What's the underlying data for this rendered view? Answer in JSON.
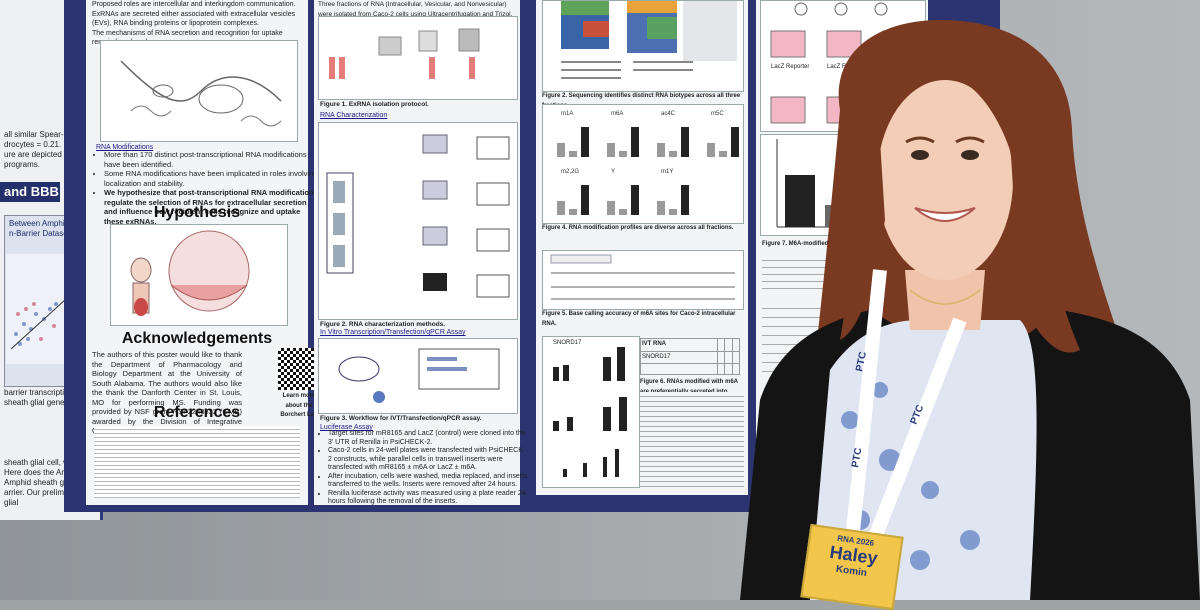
{
  "left_poster": {
    "fragment_top": "all similar Spear-\ndrocytes = 0.21.\nure are depicted\nprograms.",
    "section_bar": "and BBB",
    "panel_title": "Between Amphid\nn-Barrier Dataset",
    "fragment_mid": "barrier transcription\nsheath glial genes",
    "fragment_bottom": "sheath glial cell, we can\nHere does the Amphid\nAmphid sheath glia acts\narrier. Our preliminary glial"
  },
  "poster": {
    "col1": {
      "intro_lines": "Proposed roles are intercellular and interkingdom communication.\nExRNAs are secreted either associated with extracellular vesicles (EVs), RNA binding proteins or lipoprotein complexes.\nThe mechanisms of RNA secretion and recognition for uptake remain largely unknown.",
      "mods_heading": "RNA Modifications",
      "mods_bullets": [
        "More than 170 distinct post-transcriptional RNA modifications have been identified.",
        "Some RNA modifications have been implicated in roles involving localization and stability.",
        "We hypothesize that post-transcriptional RNA modifications regulate the selection of RNAs for extracellular secretion and influence how recipient cells recognize and uptake these exRNAs."
      ],
      "hypothesis_title": "Hypothesis",
      "ack_title": "Acknowledgements",
      "ack_text": "The authors of this poster would like to thank the Department of Pharmacology and Biology Department at the University of South Alabama. The authors would also like the thank the Danforth Center in St. Louis, MO for performing MS. Funding was provided by NSF grant NSF2243532 (GMB) awarded by the Division of Integrative Organismal Systems.",
      "qr_caption": "Learn more about the Borchert Lab",
      "refs_title": "References"
    },
    "col2": {
      "top_text": "Three fractions of RNA (Intracellular, Vesicular, and Nonvesicular) were isolated from Caco-2 cells using Ultracentrifugation and Trizol.",
      "fig1_caption": "Figure 1. ExRNA isolation protocol.",
      "rna_char_heading": "RNA Characterization",
      "fig2_caption": "Figure 2. RNA characterization methods.",
      "ivt_heading": "In Vitro Transcription/Transfection/qPCR Assay",
      "fig3_caption": "Figure 3. Workflow for IVT/Transfection/qPCR assay.",
      "luc_heading": "Luciferase Assay",
      "luc_bullets": [
        "Target sites for mR8165 and LacZ (control) were cloned into the 3' UTR of Renilla in PsiCHECK-2.",
        "Caco-2 cells in 24-well plates were transfected with PsiCHECK-2 constructs, while parallel cells in transwell inserts were transfected with mR8165 ± m6A or LacZ ± m6A.",
        "After incubation, cells were washed, media replaced, and inserts transferred to the wells. Inserts were removed after 24 hours.",
        "Renilla luciferase activity was measured using a plate reader 24 hours following the removal of the inserts."
      ]
    },
    "col3": {
      "fig2b_caption": "Figure 2. Sequencing identifies distinct RNA biotypes across all three fractions.",
      "fig4_caption": "Figure 4. RNA modification profiles are diverse across all fractions.",
      "fig5_caption": "Figure 5. Base calling accuracy of m6A sites for Caco-2 intracellular RNA.",
      "fig6_caption": "Figure 6. RNAs modified with m6A are preferentially secreted into S100.",
      "ivt_rna_header": "IVT RNA",
      "panel_labels": [
        "m1A",
        "m6A",
        "ac4C",
        "m5C",
        "m2,2G",
        "Y",
        "m1Y"
      ],
      "snord_labels": [
        "SNORD17",
        "SNORD17"
      ]
    },
    "col4": {
      "fig7_caption": "Figure 7. M6A-modified recipient cells.",
      "legend_labels": [
        "LacZ Reporter",
        "LacZ Reporter"
      ]
    }
  },
  "person": {
    "badge_event": "RNA 2026",
    "badge_first_name": "Haley",
    "badge_last_name": "Komin",
    "lanyard_text": "PTC"
  },
  "colors": {
    "poster_border": "#2b3470",
    "hair": "#7a3a22",
    "jacket": "#141414",
    "blouse": "#dfe6f2",
    "badge": "#f2c64b"
  }
}
